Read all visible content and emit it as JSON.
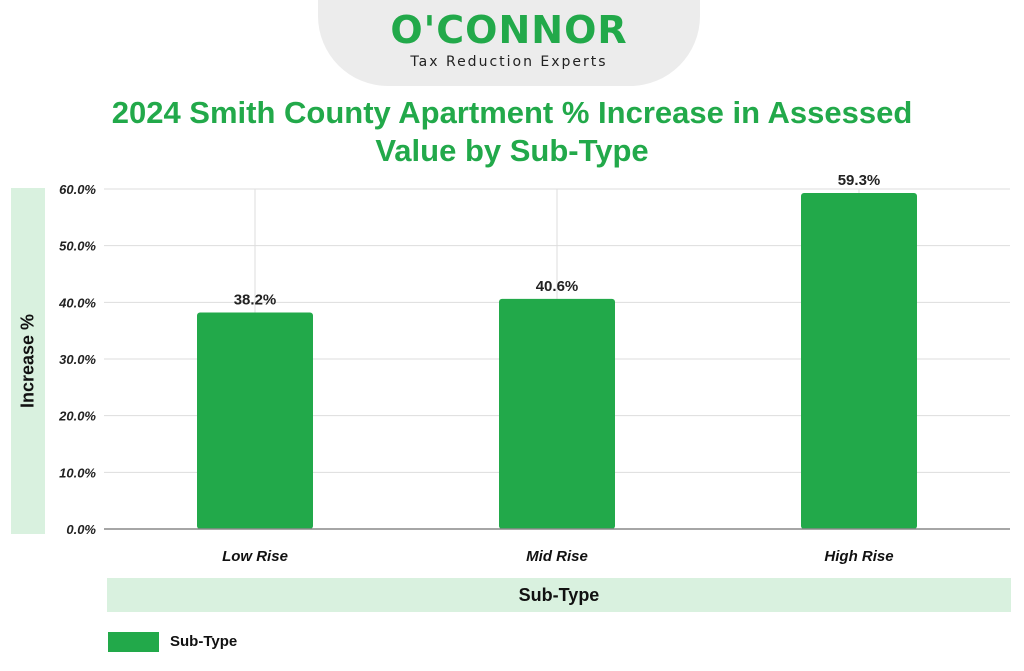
{
  "logo": {
    "brand": "O'CONNOR",
    "tagline": "Tax Reduction Experts"
  },
  "colors": {
    "bar": "#22a94a",
    "title": "#22a94a",
    "band": "#d9f1df",
    "grid": "#dddddd"
  },
  "chart_data": {
    "type": "bar",
    "title": "2024 Smith County Apartment % Increase in Assessed Value by Sub-Type",
    "xlabel": "Sub-Type",
    "ylabel": "Increase %",
    "categories": [
      "Low Rise",
      "Mid Rise",
      "High Rise"
    ],
    "series": [
      {
        "name": "Sub-Type",
        "values": [
          38.2,
          40.6,
          59.3
        ],
        "labels": [
          "38.2%",
          "40.6%",
          "59.3%"
        ]
      }
    ],
    "ylim": [
      0,
      60
    ],
    "yticks": [
      0,
      10,
      20,
      30,
      40,
      50,
      60
    ],
    "ytick_labels": [
      "0.0%",
      "10.0%",
      "20.0%",
      "30.0%",
      "40.0%",
      "50.0%",
      "60.0%"
    ],
    "grid": true,
    "legend": "bottom-left"
  }
}
